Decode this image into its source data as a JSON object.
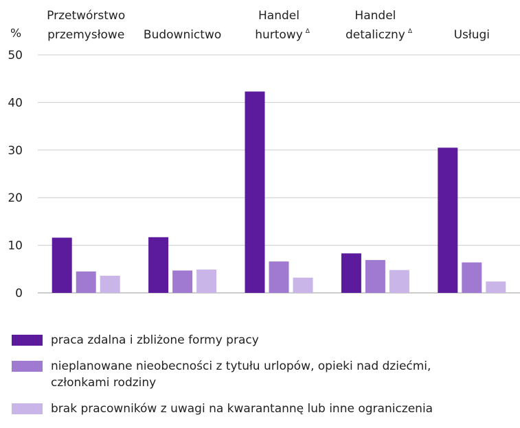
{
  "chart_data": {
    "type": "bar",
    "y_label": "%",
    "categories": [
      "Przetwórstwo przemysłowe",
      "Budownictwo",
      "Handel hurtowy",
      "Handel detaliczny",
      "Usługi"
    ],
    "category_marks": [
      null,
      null,
      "Δ",
      "Δ",
      null
    ],
    "series": [
      {
        "name": "praca zdalna i zbliżone formy pracy",
        "color": "#5c1a9d",
        "values": [
          11.6,
          11.7,
          42.3,
          8.3,
          30.5
        ]
      },
      {
        "name": "nieplanowane nieobecności z tytułu urlopów, opieki nad dziećmi, członkami rodziny",
        "color": "#a07ad0",
        "values": [
          4.5,
          4.7,
          6.6,
          6.9,
          6.4
        ]
      },
      {
        "name": "brak pracowników z uwagi na kwarantannę lub inne ograniczenia",
        "color": "#c9b5e8",
        "values": [
          3.6,
          4.9,
          3.2,
          4.8,
          2.4
        ]
      }
    ],
    "ylim": [
      0,
      50
    ],
    "yticks": [
      0,
      10,
      20,
      30,
      40,
      50
    ],
    "grid": true
  }
}
